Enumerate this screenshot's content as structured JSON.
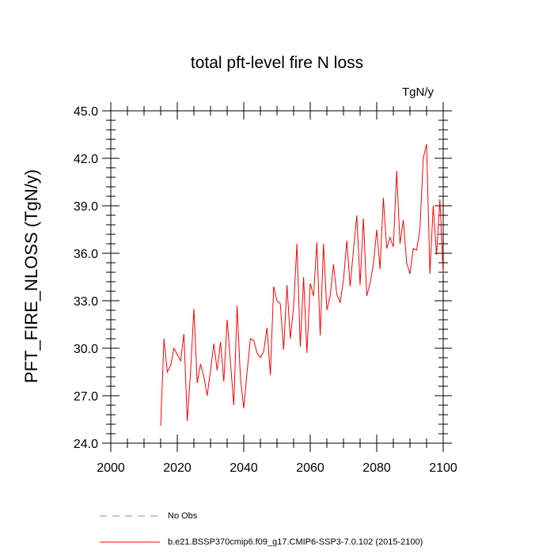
{
  "chart_data": {
    "type": "line",
    "title": "total pft-level fire N loss",
    "units": "TgN/y",
    "ylabel": "PFT_FIRE_NLOSS  (TgN/y)",
    "xlabel": "",
    "xlim": [
      2000,
      2100
    ],
    "ylim": [
      24,
      45
    ],
    "xticks": [
      2000,
      2020,
      2040,
      2060,
      2080,
      2100
    ],
    "yticks": [
      24,
      27,
      30,
      33,
      36,
      39,
      42,
      45
    ],
    "xtick_labels": [
      "2000",
      "2020",
      "2040",
      "2060",
      "2080",
      "2100"
    ],
    "ytick_labels": [
      "24.0",
      "27.0",
      "30.0",
      "33.0",
      "36.0",
      "39.0",
      "42.0",
      "45.0"
    ],
    "grid": false,
    "legend_position": "bottom",
    "series": [
      {
        "name": "No Obs",
        "color": "#8080ff",
        "dashed": true,
        "x": [],
        "y": []
      },
      {
        "name": "b.e21.BSSP370cmip6.f09_g17.CMIP6-SSP3-7.0.102 (2015-2100)",
        "color": "#ff0000",
        "dashed": false,
        "x": [
          2015,
          2016,
          2017,
          2018,
          2019,
          2020,
          2021,
          2022,
          2023,
          2024,
          2025,
          2026,
          2027,
          2028,
          2029,
          2030,
          2031,
          2032,
          2033,
          2034,
          2035,
          2036,
          2037,
          2038,
          2039,
          2040,
          2041,
          2042,
          2043,
          2044,
          2045,
          2046,
          2047,
          2048,
          2049,
          2050,
          2051,
          2052,
          2053,
          2054,
          2055,
          2056,
          2057,
          2058,
          2059,
          2060,
          2061,
          2062,
          2063,
          2064,
          2065,
          2066,
          2067,
          2068,
          2069,
          2070,
          2071,
          2072,
          2073,
          2074,
          2075,
          2076,
          2077,
          2078,
          2079,
          2080,
          2081,
          2082,
          2083,
          2084,
          2085,
          2086,
          2087,
          2088,
          2089,
          2090,
          2091,
          2092,
          2093,
          2094,
          2095,
          2096,
          2097,
          2098,
          2099,
          2100
        ],
        "y": [
          25.1,
          30.6,
          28.5,
          28.9,
          30.0,
          29.6,
          29.2,
          30.9,
          25.4,
          28.5,
          32.5,
          27.8,
          29.0,
          28.2,
          27.0,
          28.6,
          30.3,
          28.6,
          30.4,
          27.9,
          31.8,
          29.1,
          26.4,
          32.7,
          28.1,
          26.2,
          28.5,
          30.6,
          30.5,
          29.7,
          29.4,
          29.8,
          31.3,
          28.3,
          33.9,
          33.0,
          32.8,
          29.9,
          34.0,
          30.6,
          32.6,
          36.6,
          30.1,
          34.5,
          29.7,
          34.1,
          33.3,
          36.7,
          30.8,
          36.6,
          32.4,
          33.3,
          35.3,
          33.4,
          32.9,
          34.3,
          36.8,
          33.9,
          36.2,
          38.4,
          34.0,
          38.2,
          33.3,
          34.1,
          35.3,
          37.5,
          35.0,
          39.5,
          36.3,
          37.0,
          36.4,
          41.2,
          36.6,
          38.1,
          35.4,
          34.7,
          36.3,
          36.2,
          37.5,
          42.0,
          42.9,
          34.7,
          39.0,
          35.9,
          39.4,
          34.7
        ]
      }
    ]
  }
}
